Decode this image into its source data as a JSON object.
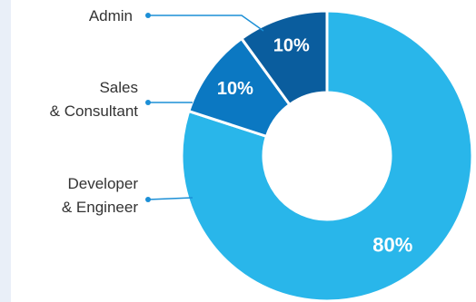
{
  "chart_data": {
    "type": "pie",
    "variant": "donut",
    "title": "",
    "slices": [
      {
        "label_lines": [
          "Developer",
          "& Engineer"
        ],
        "value": 80,
        "value_label": "80%",
        "color": "#29b6ea"
      },
      {
        "label_lines": [
          "Sales",
          "& Consultant"
        ],
        "value": 10,
        "value_label": "10%",
        "color": "#0b78c2"
      },
      {
        "label_lines": [
          "Admin"
        ],
        "value": 10,
        "value_label": "10%",
        "color": "#0a5d9e"
      }
    ],
    "legend_placement": "left"
  },
  "colors": {
    "connector": "#1c8fd6",
    "separator": "#ffffff",
    "background_band": "#e9eff8"
  }
}
